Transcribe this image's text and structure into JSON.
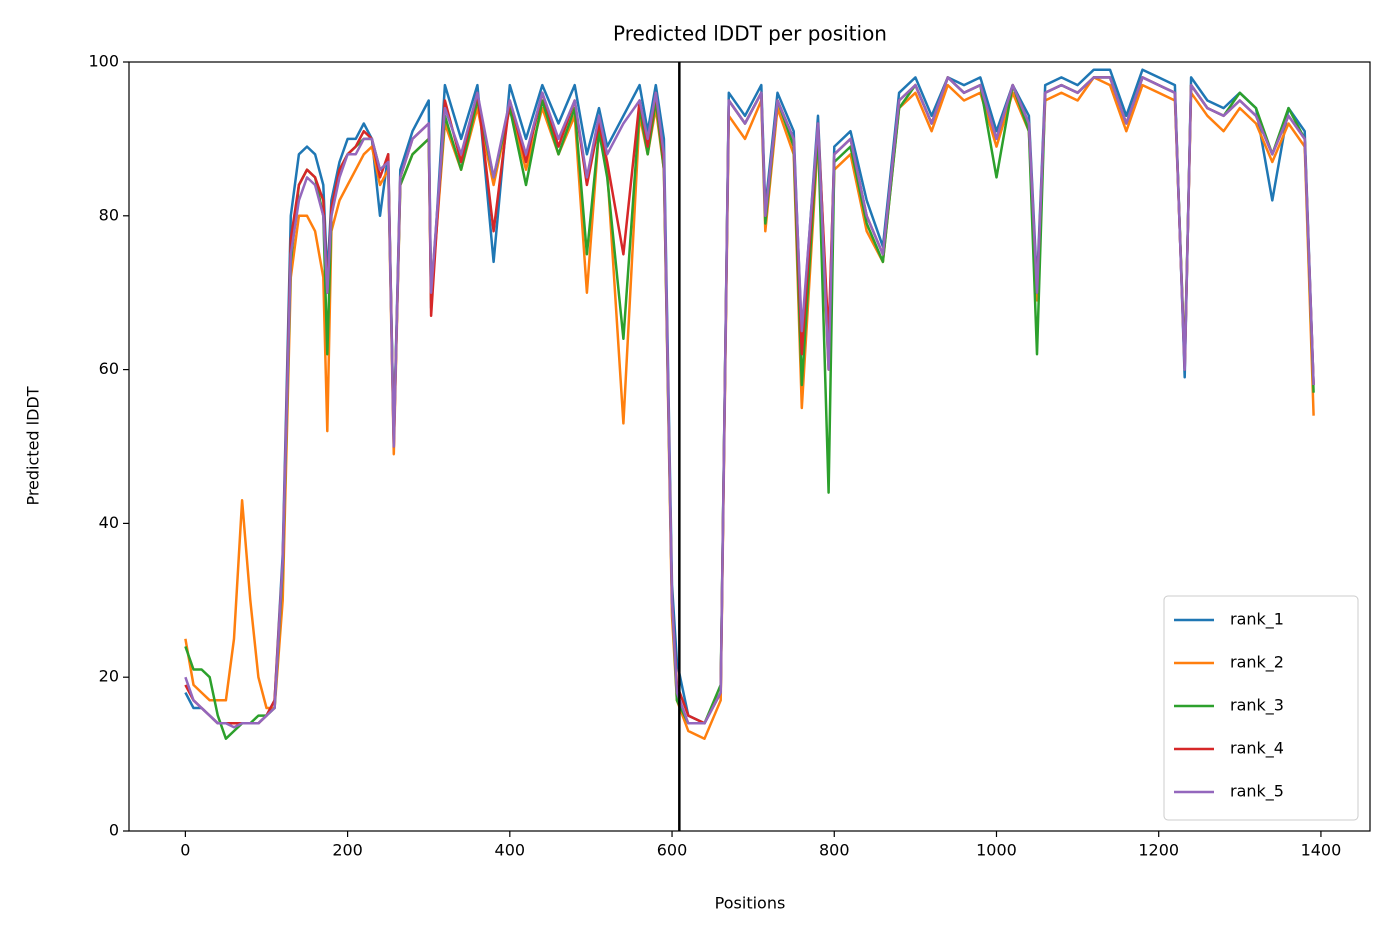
{
  "chart_data": {
    "type": "line",
    "title": "Predicted lDDT per position",
    "xlabel": "Positions",
    "ylabel": "Predicted lDDT",
    "xlim": [
      -69.5,
      1460.5
    ],
    "ylim": [
      0,
      100
    ],
    "xticks": [
      0,
      200,
      400,
      600,
      800,
      1000,
      1200,
      1400
    ],
    "yticks": [
      0,
      20,
      40,
      60,
      80,
      100
    ],
    "legend": "lower right",
    "vline": 609,
    "vline_color": "#000000",
    "x": [
      0,
      10,
      20,
      30,
      40,
      50,
      60,
      70,
      80,
      90,
      100,
      110,
      120,
      130,
      140,
      150,
      160,
      170,
      175,
      180,
      190,
      200,
      210,
      220,
      230,
      240,
      250,
      257,
      265,
      280,
      300,
      303,
      320,
      340,
      360,
      380,
      400,
      420,
      440,
      460,
      480,
      495,
      510,
      520,
      540,
      560,
      570,
      580,
      590,
      600,
      606,
      620,
      640,
      660,
      670,
      690,
      710,
      715,
      730,
      750,
      760,
      780,
      793,
      800,
      820,
      840,
      860,
      880,
      900,
      920,
      940,
      960,
      980,
      1000,
      1020,
      1040,
      1050,
      1060,
      1080,
      1100,
      1120,
      1140,
      1160,
      1180,
      1200,
      1220,
      1232,
      1240,
      1260,
      1280,
      1300,
      1320,
      1340,
      1360,
      1380,
      1391
    ],
    "series": [
      {
        "name": "rank_1",
        "color": "#1f77b4",
        "values": [
          18,
          16,
          16,
          15,
          14,
          14,
          14,
          14,
          14,
          14,
          15,
          17,
          36,
          80,
          88,
          89,
          88,
          84,
          72,
          82,
          87,
          90,
          90,
          92,
          90,
          80,
          88,
          51,
          86,
          91,
          95,
          68,
          97,
          90,
          97,
          74,
          97,
          90,
          97,
          92,
          97,
          88,
          94,
          89,
          93,
          97,
          91,
          97,
          90,
          32,
          22,
          15,
          14,
          18,
          96,
          93,
          97,
          81,
          96,
          91,
          64,
          93,
          62,
          89,
          91,
          82,
          76,
          96,
          98,
          93,
          98,
          97,
          98,
          91,
          97,
          93,
          71,
          97,
          98,
          97,
          99,
          99,
          93,
          99,
          98,
          97,
          59,
          98,
          95,
          94,
          96,
          94,
          82,
          94,
          91,
          58
        ]
      },
      {
        "name": "rank_2",
        "color": "#ff7f0e",
        "values": [
          25,
          19,
          18,
          17,
          17,
          17,
          25,
          43,
          30,
          20,
          16,
          16,
          30,
          72,
          80,
          80,
          78,
          72,
          52,
          78,
          82,
          84,
          86,
          88,
          89,
          84,
          86,
          49,
          84,
          88,
          90,
          69,
          92,
          86,
          94,
          84,
          94,
          86,
          94,
          88,
          93,
          70,
          91,
          86,
          53,
          93,
          88,
          94,
          86,
          28,
          17,
          13,
          12,
          17,
          93,
          90,
          95,
          78,
          94,
          88,
          55,
          90,
          60,
          86,
          88,
          78,
          74,
          94,
          96,
          91,
          97,
          95,
          96,
          89,
          96,
          91,
          69,
          95,
          96,
          95,
          98,
          97,
          91,
          97,
          96,
          95,
          61,
          96,
          93,
          91,
          94,
          92,
          87,
          92,
          89,
          54
        ]
      },
      {
        "name": "rank_3",
        "color": "#2ca02c",
        "values": [
          24,
          21,
          21,
          20,
          15,
          12,
          13,
          14,
          14,
          15,
          15,
          16,
          34,
          74,
          84,
          86,
          85,
          80,
          62,
          80,
          86,
          88,
          89,
          90,
          90,
          86,
          87,
          51,
          84,
          88,
          90,
          70,
          93,
          86,
          95,
          85,
          94,
          84,
          95,
          88,
          94,
          75,
          91,
          85,
          64,
          94,
          88,
          95,
          86,
          30,
          17,
          14,
          14,
          19,
          95,
          92,
          96,
          79,
          95,
          89,
          58,
          91,
          44,
          87,
          89,
          79,
          74,
          94,
          97,
          92,
          98,
          96,
          97,
          85,
          97,
          91,
          62,
          96,
          97,
          96,
          98,
          98,
          92,
          98,
          97,
          96,
          61,
          97,
          94,
          93,
          96,
          94,
          88,
          94,
          90,
          57
        ]
      },
      {
        "name": "rank_4",
        "color": "#d62728",
        "values": [
          19,
          17,
          16,
          15,
          14,
          14,
          14,
          14,
          14,
          14,
          15,
          17,
          35,
          77,
          84,
          86,
          85,
          82,
          70,
          81,
          86,
          88,
          89,
          91,
          90,
          85,
          88,
          50,
          85,
          90,
          92,
          67,
          95,
          87,
          96,
          78,
          95,
          87,
          96,
          89,
          95,
          84,
          92,
          87,
          75,
          95,
          89,
          96,
          87,
          30,
          19,
          15,
          14,
          18,
          95,
          92,
          96,
          80,
          95,
          90,
          62,
          92,
          64,
          88,
          90,
          80,
          75,
          95,
          97,
          92,
          98,
          96,
          97,
          90,
          97,
          92,
          70,
          96,
          97,
          96,
          98,
          98,
          92,
          98,
          97,
          96,
          60,
          97,
          94,
          93,
          95,
          93,
          88,
          93,
          90,
          58
        ]
      },
      {
        "name": "rank_5",
        "color": "#9467bd",
        "values": [
          20,
          17,
          16,
          15,
          14,
          14,
          13.5,
          14,
          14,
          14,
          15,
          16,
          35,
          75,
          82,
          85,
          84,
          80,
          70,
          80,
          85,
          88,
          88,
          90,
          90,
          86,
          87,
          50,
          85,
          90,
          92,
          70,
          94,
          88,
          96,
          85,
          95,
          88,
          96,
          90,
          95,
          85,
          93,
          88,
          92,
          95,
          90,
          96,
          88,
          30,
          18,
          14,
          14,
          18,
          95,
          92,
          96,
          80,
          95,
          90,
          65,
          92,
          60,
          88,
          90,
          80,
          75,
          95,
          97,
          92,
          98,
          96,
          97,
          90,
          97,
          92,
          70,
          96,
          97,
          96,
          98,
          98,
          92,
          98,
          97,
          96,
          60,
          97,
          94,
          93,
          95,
          93,
          88,
          93,
          90,
          58
        ]
      }
    ]
  }
}
